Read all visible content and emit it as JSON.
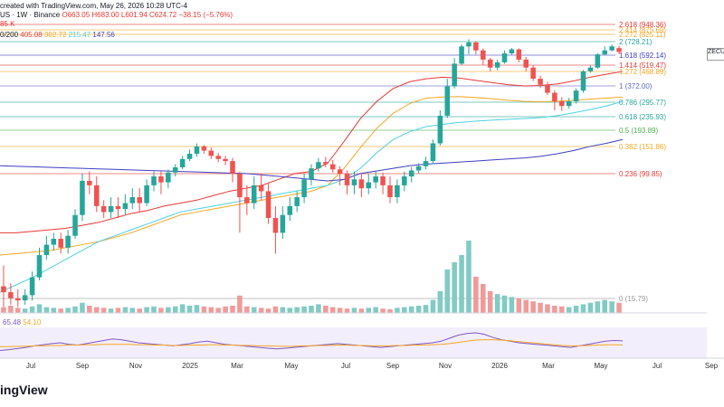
{
  "header": {
    "line1": "created with TradingView.com, May 26, 2026 10:28 UTC-4",
    "line2": {
      "symbol": "US · 1W · Binance",
      "ohlc": "O663.05 H683.00 L601.94 C624.72 −38.15 (−5.76%)",
      "level": "85 K"
    },
    "line3": {
      "label": "0/200",
      "values": [
        "405.08",
        "302.72",
        "215.47",
        "147.56"
      ],
      "colors": [
        "#e53935",
        "#f5a623",
        "#4dd0e1",
        "#3f3fbf"
      ]
    }
  },
  "ticker_tag": "ZECU",
  "logo": "ingView",
  "rsi": {
    "values": [
      "65.48",
      "54.10"
    ],
    "colors": [
      "#7e57c2",
      "#f5a623"
    ]
  },
  "chart_data": {
    "type": "candlestick",
    "title": "",
    "x_ticks": [
      "Jul",
      "Sep",
      "Nov",
      "2025",
      "Mar",
      "May",
      "Jul",
      "Sep",
      "Nov",
      "2026",
      "Mar",
      "May",
      "Jul",
      "Sep"
    ],
    "fib_levels": [
      {
        "label": "2.618 (948.36)",
        "value": 948.36,
        "color": "#e53935"
      },
      {
        "label": "2.414 (875.69)",
        "value": 875.69,
        "color": "#f5a623"
      },
      {
        "label": "2.272 (825.11)",
        "value": 825.11,
        "color": "#f5a623"
      },
      {
        "label": "2 (728.21)",
        "value": 728.21,
        "color": "#26a69a"
      },
      {
        "label": "1.618 (592.14)",
        "value": 592.14,
        "color": "#3f3fbf"
      },
      {
        "label": "1.414 (519.47)",
        "value": 519.47,
        "color": "#e53935"
      },
      {
        "label": "1.272 (468.89)",
        "value": 468.89,
        "color": "#f5a623"
      },
      {
        "label": "1 (372.00)",
        "value": 372.0,
        "color": "#5c6bc0"
      },
      {
        "label": "0.786 (295.77)",
        "value": 295.77,
        "color": "#26a69a"
      },
      {
        "label": "0.618 (235.93)",
        "value": 235.93,
        "color": "#26a69a"
      },
      {
        "label": "0.5 (193.89)",
        "value": 193.89,
        "color": "#4caf50"
      },
      {
        "label": "0.382 (151.86)",
        "value": 151.86,
        "color": "#f5a623"
      },
      {
        "label": "0.236 (99.85)",
        "value": 99.85,
        "color": "#e53935"
      },
      {
        "label": "0 (15.79)",
        "value": 15.79,
        "color": "#999999"
      }
    ],
    "candles": [
      [
        24,
        20,
        38,
        8
      ],
      [
        20,
        16,
        26,
        10
      ],
      [
        16,
        14,
        22,
        8
      ],
      [
        14,
        18,
        22,
        10
      ],
      [
        18,
        30,
        34,
        14
      ],
      [
        30,
        45,
        50,
        28
      ],
      [
        45,
        52,
        58,
        42
      ],
      [
        52,
        56,
        60,
        48
      ],
      [
        56,
        50,
        60,
        46
      ],
      [
        50,
        58,
        62,
        46
      ],
      [
        58,
        72,
        76,
        56
      ],
      [
        72,
        95,
        100,
        68
      ],
      [
        95,
        92,
        104,
        86
      ],
      [
        92,
        78,
        98,
        74
      ],
      [
        78,
        74,
        82,
        70
      ],
      [
        74,
        78,
        84,
        70
      ],
      [
        78,
        76,
        84,
        70
      ],
      [
        76,
        80,
        86,
        72
      ],
      [
        80,
        84,
        90,
        76
      ],
      [
        84,
        80,
        90,
        74
      ],
      [
        80,
        92,
        96,
        78
      ],
      [
        92,
        98,
        104,
        88
      ],
      [
        98,
        94,
        104,
        86
      ],
      [
        94,
        102,
        108,
        90
      ],
      [
        102,
        112,
        118,
        98
      ],
      [
        112,
        128,
        134,
        108
      ],
      [
        128,
        138,
        146,
        124
      ],
      [
        138,
        152,
        160,
        132
      ],
      [
        152,
        144,
        156,
        138
      ],
      [
        144,
        134,
        150,
        128
      ],
      [
        134,
        128,
        140,
        122
      ],
      [
        128,
        124,
        134,
        116
      ],
      [
        124,
        100,
        130,
        94
      ],
      [
        100,
        84,
        104,
        60
      ],
      [
        84,
        80,
        92,
        72
      ],
      [
        80,
        92,
        98,
        76
      ],
      [
        92,
        88,
        100,
        82
      ],
      [
        88,
        70,
        94,
        66
      ],
      [
        70,
        60,
        78,
        46
      ],
      [
        60,
        72,
        78,
        56
      ],
      [
        72,
        78,
        84,
        68
      ],
      [
        78,
        84,
        88,
        74
      ],
      [
        84,
        96,
        100,
        80
      ],
      [
        96,
        110,
        118,
        92
      ],
      [
        110,
        122,
        130,
        104
      ],
      [
        122,
        118,
        132,
        112
      ],
      [
        118,
        108,
        126,
        102
      ],
      [
        108,
        100,
        114,
        92
      ],
      [
        100,
        92,
        106,
        86
      ],
      [
        92,
        96,
        104,
        86
      ],
      [
        96,
        90,
        100,
        84
      ],
      [
        90,
        94,
        100,
        86
      ],
      [
        94,
        98,
        104,
        90
      ],
      [
        98,
        92,
        102,
        86
      ],
      [
        92,
        84,
        98,
        80
      ],
      [
        84,
        92,
        96,
        80
      ],
      [
        92,
        98,
        104,
        88
      ],
      [
        98,
        106,
        112,
        94
      ],
      [
        106,
        114,
        120,
        100
      ],
      [
        114,
        124,
        132,
        108
      ],
      [
        124,
        160,
        170,
        118
      ],
      [
        160,
        240,
        262,
        154
      ],
      [
        240,
        370,
        420,
        232
      ],
      [
        370,
        530,
        572,
        360
      ],
      [
        530,
        680,
        700,
        520
      ],
      [
        680,
        720,
        760,
        600
      ],
      [
        720,
        640,
        732,
        600
      ],
      [
        640,
        560,
        660,
        520
      ],
      [
        560,
        500,
        572,
        470
      ],
      [
        500,
        540,
        560,
        480
      ],
      [
        540,
        610,
        640,
        530
      ],
      [
        610,
        650,
        664,
        596
      ],
      [
        650,
        560,
        660,
        540
      ],
      [
        560,
        500,
        580,
        470
      ],
      [
        500,
        420,
        520,
        404
      ],
      [
        420,
        380,
        440,
        362
      ],
      [
        380,
        340,
        400,
        330
      ],
      [
        340,
        300,
        352,
        262
      ],
      [
        300,
        280,
        320,
        260
      ],
      [
        280,
        300,
        316,
        270
      ],
      [
        300,
        350,
        360,
        290
      ],
      [
        350,
        470,
        480,
        340
      ],
      [
        470,
        500,
        520,
        460
      ],
      [
        500,
        600,
        610,
        490
      ],
      [
        600,
        640,
        680,
        590
      ],
      [
        640,
        680,
        700,
        630
      ],
      [
        663,
        625,
        683,
        602
      ]
    ],
    "ma_series": [
      {
        "name": "",
        "color": "#e53935",
        "values": [
          60,
          60,
          61,
          62,
          63,
          65,
          67,
          70,
          73,
          75,
          78,
          80,
          82,
          85,
          88,
          90,
          92,
          96,
          100,
          104,
          120,
          165,
          230,
          300,
          360,
          400,
          420,
          430,
          425,
          410,
          395,
          380,
          372,
          375,
          385,
          405,
          430,
          450,
          470
        ]
      },
      {
        "name": "",
        "color": "#f5a623",
        "values": [
          45,
          46,
          47,
          48,
          50,
          52,
          54,
          57,
          60,
          64,
          68,
          72,
          74,
          76,
          78,
          80,
          82,
          84,
          86,
          88,
          92,
          110,
          150,
          200,
          250,
          290,
          315,
          320,
          322,
          318,
          312,
          305,
          300,
          298,
          300,
          305,
          310,
          315,
          320
        ]
      },
      {
        "name": "",
        "color": "#4dd0e1",
        "values": [
          20,
          25,
          30,
          36,
          42,
          48,
          54,
          58,
          62,
          66,
          70,
          74,
          76,
          78,
          80,
          82,
          84,
          86,
          88,
          90,
          92,
          96,
          110,
          140,
          170,
          190,
          205,
          212,
          218,
          222,
          225,
          228,
          230,
          233,
          240,
          252,
          265,
          280,
          300
        ]
      },
      {
        "name": "",
        "color": "#3f3fbf",
        "values": [
          115,
          114,
          113,
          112,
          111,
          110,
          109,
          108,
          107,
          106,
          105,
          104,
          103,
          102,
          101,
          100,
          99,
          98,
          97,
          96,
          95,
          96,
          100,
          105,
          110,
          115,
          118,
          120,
          122,
          124,
          126,
          128,
          130,
          133,
          138,
          144,
          152,
          160,
          170
        ]
      }
    ],
    "volumes": [
      8,
      10,
      7,
      6,
      9,
      12,
      8,
      7,
      6,
      7,
      9,
      14,
      10,
      8,
      7,
      6,
      7,
      8,
      7,
      6,
      8,
      9,
      7,
      8,
      9,
      12,
      10,
      11,
      9,
      8,
      7,
      9,
      10,
      24,
      9,
      8,
      7,
      6,
      9,
      8,
      7,
      8,
      9,
      10,
      12,
      10,
      8,
      7,
      6,
      7,
      6,
      7,
      8,
      6,
      5,
      7,
      8,
      9,
      10,
      11,
      18,
      30,
      60,
      70,
      80,
      100,
      50,
      40,
      30,
      26,
      24,
      22,
      20,
      18,
      16,
      14,
      12,
      10,
      9,
      8,
      10,
      12,
      14,
      16,
      18,
      16,
      14
    ],
    "rsi_series": [
      {
        "name": "",
        "color": "#7e57c2",
        "values": [
          40,
          42,
          45,
          48,
          52,
          55,
          58,
          60,
          56,
          54,
          58,
          62,
          66,
          70,
          68,
          64,
          60,
          58,
          56,
          54,
          52,
          55,
          58,
          62,
          64,
          60,
          56,
          54,
          52,
          50,
          48,
          46,
          44,
          46,
          48,
          50,
          52,
          54,
          56,
          58,
          56,
          54,
          52,
          50,
          48,
          50,
          52,
          54,
          56,
          58,
          60,
          64,
          72,
          80,
          84,
          86,
          82,
          74,
          68,
          64,
          60,
          58,
          56,
          54,
          52,
          50,
          48,
          52,
          56,
          60,
          64,
          66,
          65
        ]
      },
      {
        "name": "",
        "color": "#f5a623",
        "values": [
          50,
          50,
          51,
          51,
          52,
          52,
          53,
          53,
          54,
          54,
          55,
          55,
          56,
          56,
          56,
          56,
          55,
          55,
          54,
          54,
          53,
          53,
          54,
          54,
          55,
          55,
          54,
          54,
          53,
          53,
          52,
          52,
          51,
          51,
          51,
          52,
          52,
          53,
          53,
          54,
          54,
          53,
          53,
          52,
          52,
          52,
          53,
          53,
          54,
          54,
          55,
          56,
          58,
          61,
          64,
          67,
          68,
          68,
          67,
          65,
          63,
          61,
          59,
          57,
          55,
          53,
          52,
          52,
          53,
          54,
          55,
          55,
          54
        ]
      }
    ]
  }
}
